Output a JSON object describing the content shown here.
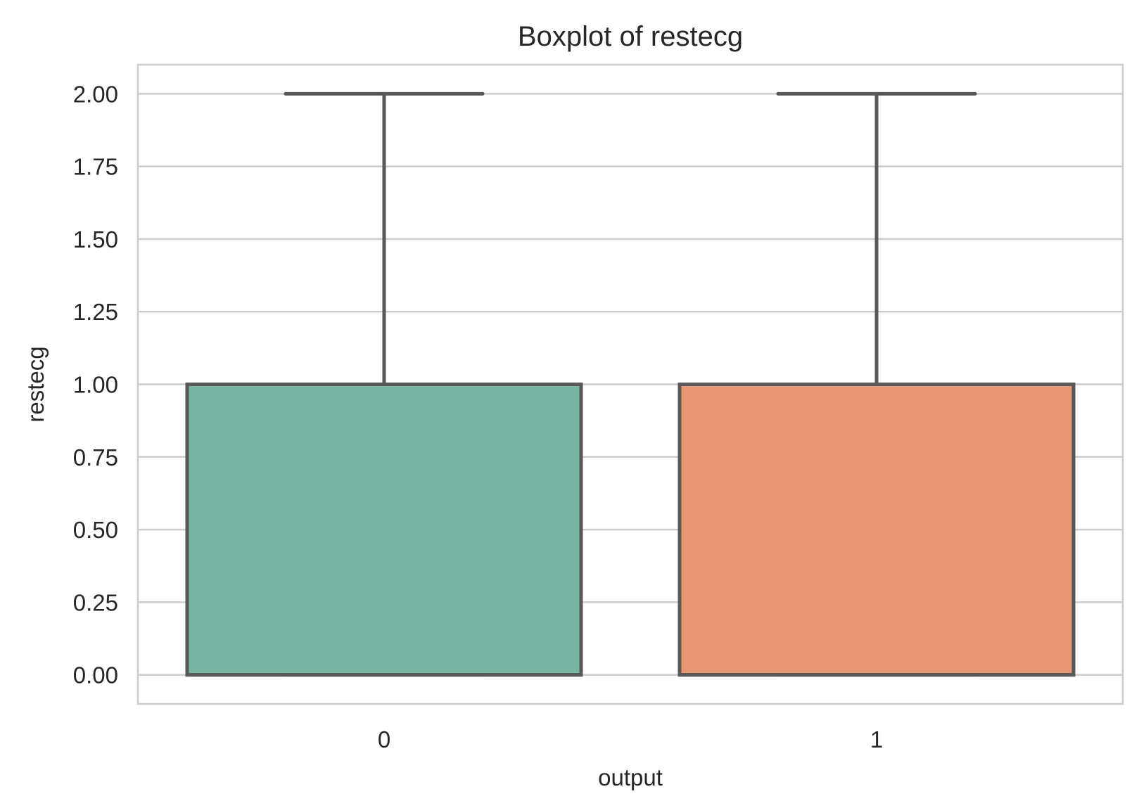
{
  "chart_data": {
    "type": "boxplot",
    "title": "Boxplot of restecg",
    "xlabel": "output",
    "ylabel": "restecg",
    "ylim": [
      -0.1,
      2.1
    ],
    "yticks": [
      0.0,
      0.25,
      0.5,
      0.75,
      1.0,
      1.25,
      1.5,
      1.75,
      2.0
    ],
    "ytick_labels": [
      "0.00",
      "0.25",
      "0.50",
      "0.75",
      "1.00",
      "1.25",
      "1.50",
      "1.75",
      "2.00"
    ],
    "categories": [
      "0",
      "1"
    ],
    "boxes": [
      {
        "category": "0",
        "whisker_low": 0.0,
        "q1": 0.0,
        "median": 0.0,
        "q3": 1.0,
        "whisker_high": 2.0,
        "color": "#76b5a1"
      },
      {
        "category": "1",
        "whisker_low": 0.0,
        "q1": 0.0,
        "median": 0.0,
        "q3": 1.0,
        "whisker_high": 2.0,
        "color": "#e89774"
      }
    ],
    "grid": true,
    "colors": {
      "line": "#595959",
      "grid": "#cccccc",
      "text": "#262626"
    }
  }
}
